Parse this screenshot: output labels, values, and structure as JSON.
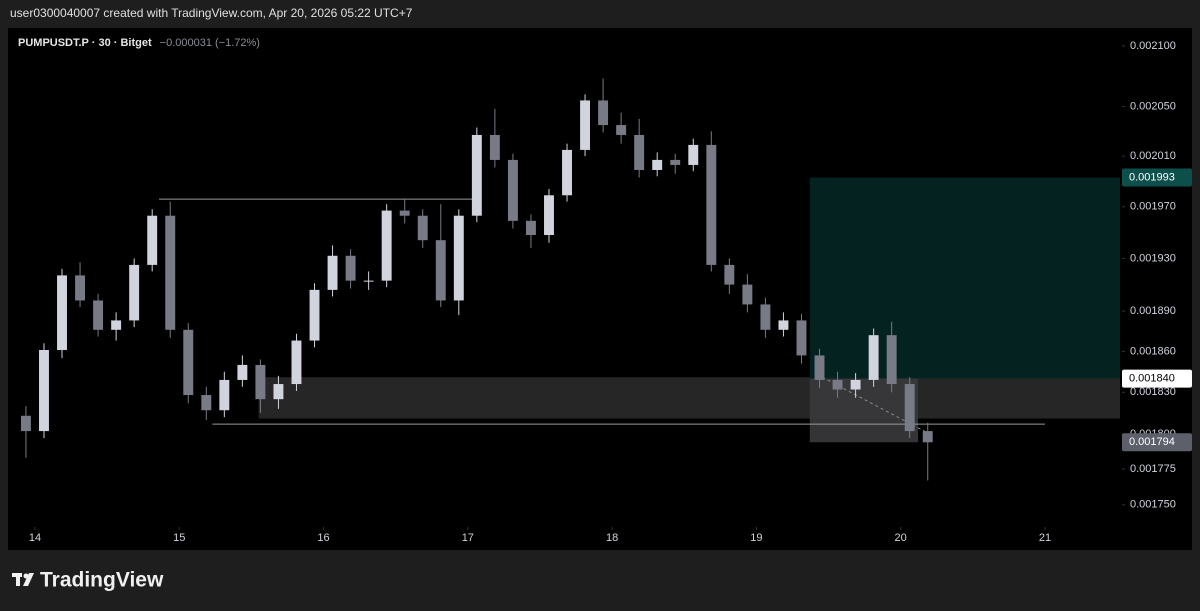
{
  "credit": "user0300040007 created with TradingView.com, Apr 20, 2026 05:22 UTC+7",
  "logo": "TradingView",
  "chart_data": {
    "type": "candlestick",
    "title": "PUMPUSDT.P · 30 · Bitget",
    "change": "−0.000031 (−1.72%)",
    "log_scale": true,
    "grid": false,
    "up_color": "#d1d4dc",
    "down_color": "#787b86",
    "x": [
      13.875,
      14,
      14.125,
      14.25,
      14.375,
      14.5,
      14.625,
      14.75,
      14.875,
      15,
      15.125,
      15.25,
      15.375,
      15.5,
      15.625,
      15.75,
      15.875,
      16,
      16.125,
      16.25,
      16.375,
      16.5,
      16.625,
      16.75,
      16.875,
      17,
      17.125,
      17.25,
      17.375,
      17.5,
      17.625,
      17.75,
      17.875,
      18,
      18.125,
      18.25,
      18.375,
      18.5,
      18.625,
      18.75,
      18.875,
      19,
      19.125,
      19.25,
      19.375,
      19.5,
      19.625,
      19.75,
      19.875,
      20,
      20.125
    ],
    "open": [
      0.001813,
      0.001802,
      0.001861,
      0.001917,
      0.001898,
      0.001876,
      0.001883,
      0.001925,
      0.001963,
      0.001876,
      0.001828,
      0.001817,
      0.001839,
      0.00185,
      0.001825,
      0.001836,
      0.001868,
      0.001906,
      0.001932,
      0.001913,
      0.001913,
      0.001967,
      0.001963,
      0.001944,
      0.001898,
      0.001963,
      0.002027,
      0.002007,
      0.001959,
      0.001948,
      0.001979,
      0.002015,
      0.002055,
      0.002035,
      0.002027,
      0.001999,
      0.002007,
      0.002003,
      0.002019,
      0.001925,
      0.00191,
      0.001895,
      0.001876,
      0.001883,
      0.001857,
      0.001839,
      0.001832,
      0.001839,
      0.001872,
      0.001836,
      0.001802
    ],
    "high": [
      0.00182,
      0.001866,
      0.001922,
      0.001927,
      0.001903,
      0.001889,
      0.00193,
      0.001968,
      0.001974,
      0.001881,
      0.001834,
      0.001845,
      0.001857,
      0.001854,
      0.001842,
      0.001873,
      0.001911,
      0.00194,
      0.001937,
      0.00192,
      0.001972,
      0.001976,
      0.001968,
      0.001972,
      0.001968,
      0.002033,
      0.002048,
      0.002012,
      0.001964,
      0.001984,
      0.00202,
      0.00206,
      0.002073,
      0.002045,
      0.00204,
      0.002013,
      0.002012,
      0.002024,
      0.00203,
      0.00193,
      0.001918,
      0.0019,
      0.001889,
      0.001888,
      0.001862,
      0.001845,
      0.001844,
      0.001877,
      0.001882,
      0.001841,
      0.001808
    ],
    "low": [
      0.001783,
      0.001797,
      0.001855,
      0.001893,
      0.001871,
      0.001868,
      0.001878,
      0.00192,
      0.00187,
      0.001822,
      0.00181,
      0.001812,
      0.001834,
      0.001815,
      0.001818,
      0.001831,
      0.001863,
      0.001901,
      0.001907,
      0.001906,
      0.001908,
      0.001957,
      0.001938,
      0.001893,
      0.001887,
      0.001958,
      0.002001,
      0.001953,
      0.001938,
      0.001942,
      0.001974,
      0.00201,
      0.002029,
      0.00202,
      0.001993,
      0.001994,
      0.001996,
      0.001998,
      0.00192,
      0.001903,
      0.001889,
      0.00187,
      0.001871,
      0.001851,
      0.001833,
      0.001826,
      0.001826,
      0.001834,
      0.00183,
      0.001797,
      0.001767
    ],
    "close": [
      0.001802,
      0.001861,
      0.001917,
      0.001898,
      0.001876,
      0.001883,
      0.001925,
      0.001963,
      0.001876,
      0.001828,
      0.001817,
      0.001839,
      0.00185,
      0.001825,
      0.001836,
      0.001868,
      0.001906,
      0.001932,
      0.001913,
      0.001913,
      0.001967,
      0.001963,
      0.001944,
      0.001898,
      0.001963,
      0.002027,
      0.002007,
      0.001959,
      0.001948,
      0.001979,
      0.002015,
      0.002055,
      0.002035,
      0.002027,
      0.001999,
      0.002007,
      0.002003,
      0.002019,
      0.001925,
      0.00191,
      0.001895,
      0.001876,
      0.001883,
      0.001857,
      0.001839,
      0.001832,
      0.001839,
      0.001872,
      0.001836,
      0.001802,
      0.001794
    ],
    "xlim": [
      13.827,
      21.52
    ],
    "xticks": [
      14,
      15,
      16,
      17,
      18,
      19,
      20,
      21
    ],
    "ylim": [
      0.001736,
      0.002115
    ],
    "yticks": [
      {
        "value": 0.0021,
        "label": "0.002100"
      },
      {
        "value": 0.00205,
        "label": "0.002050"
      },
      {
        "value": 0.00201,
        "label": "0.002010"
      },
      {
        "value": 0.00197,
        "label": "0.001970"
      },
      {
        "value": 0.00193,
        "label": "0.001930"
      },
      {
        "value": 0.00189,
        "label": "0.001890"
      },
      {
        "value": 0.00186,
        "label": "0.001860"
      },
      {
        "value": 0.00183,
        "label": "0.001830"
      },
      {
        "value": 0.0018,
        "label": "0.001800"
      },
      {
        "value": 0.001775,
        "label": "0.001775"
      },
      {
        "value": 0.00175,
        "label": "0.001750"
      }
    ],
    "zones": [
      {
        "x": [
          15.55,
          21.52
        ],
        "y": [
          0.001811,
          0.001841
        ],
        "color": "#2a2a2a"
      },
      {
        "x": [
          19.37,
          21.52
        ],
        "y": [
          0.00184,
          0.001993
        ],
        "color": "#032624"
      },
      {
        "x": [
          19.37,
          20.12
        ],
        "y": [
          0.001794,
          0.00184
        ],
        "color": "#3a3a3d"
      }
    ],
    "lines": [
      {
        "x": [
          14.86,
          17.06
        ],
        "y": [
          0.001976,
          0.001976
        ],
        "color": "#9a9a9a",
        "dash": false
      },
      {
        "x": [
          15.23,
          21.0
        ],
        "y": [
          0.001807,
          0.001807
        ],
        "color": "#9a9a9a",
        "dash": false
      },
      {
        "x": [
          19.42,
          20.2
        ],
        "y": [
          0.001843,
          0.0018
        ],
        "color": "#8a8a8a",
        "dash": true
      }
    ],
    "price_labels": [
      {
        "value": 0.001993,
        "label": "0.001993",
        "color": "#0d4f4b",
        "text_color": "#ffffff"
      },
      {
        "value": 0.00184,
        "label": "0.001840",
        "color": "#ffffff",
        "text_color": "#000000"
      },
      {
        "value": 0.001794,
        "label": "0.001794",
        "color": "#5d606b",
        "text_color": "#ffffff"
      }
    ]
  }
}
